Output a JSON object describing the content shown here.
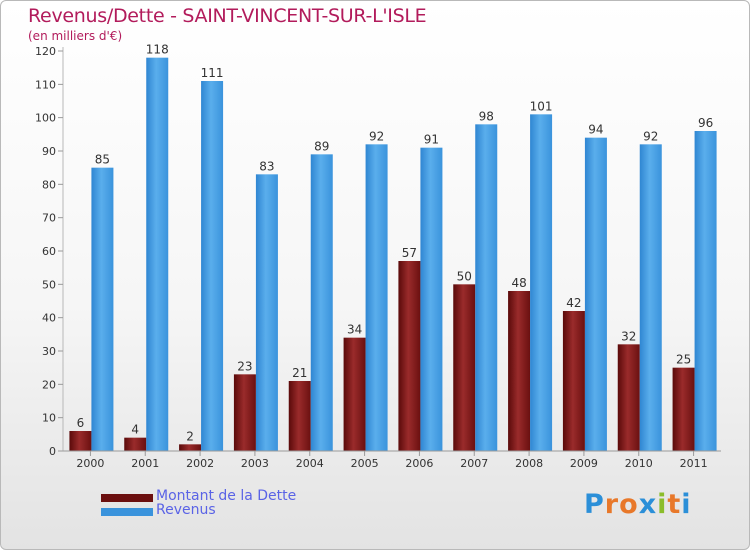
{
  "title": "Revenus/Dette - SAINT-VINCENT-SUR-L'ISLE",
  "subtitle": "(en milliers d'€)",
  "colors": {
    "dette": "#7a1414",
    "revenus": "#3a93dc",
    "title": "#b21b5b",
    "legend_text": "#5a63e6"
  },
  "legend": [
    {
      "label": "Montant de la Dette",
      "color": "#6b0f0f"
    },
    {
      "label": "Revenus",
      "color": "#3a93dc"
    }
  ],
  "logo": {
    "letters": [
      "P",
      "r",
      "o",
      "x",
      "i",
      "t",
      "i"
    ],
    "colors": [
      "#2b8fd8",
      "#e8782a",
      "#e8782a",
      "#2b8fd8",
      "#8bbd2a",
      "#e8782a",
      "#2b8fd8"
    ]
  },
  "chart_data": {
    "type": "bar",
    "categories": [
      "2000",
      "2001",
      "2002",
      "2003",
      "2004",
      "2005",
      "2006",
      "2007",
      "2008",
      "2009",
      "2010",
      "2011"
    ],
    "series": [
      {
        "name": "Montant de la Dette",
        "values": [
          6,
          4,
          2,
          23,
          21,
          34,
          57,
          50,
          48,
          42,
          32,
          25
        ]
      },
      {
        "name": "Revenus",
        "values": [
          85,
          118,
          111,
          83,
          89,
          92,
          91,
          98,
          101,
          94,
          92,
          96
        ]
      }
    ],
    "ylim": [
      0,
      120
    ],
    "yticks": [
      0,
      10,
      20,
      30,
      40,
      50,
      60,
      70,
      80,
      90,
      100,
      110,
      120
    ],
    "grid": false,
    "legend_position": "bottom-left"
  }
}
